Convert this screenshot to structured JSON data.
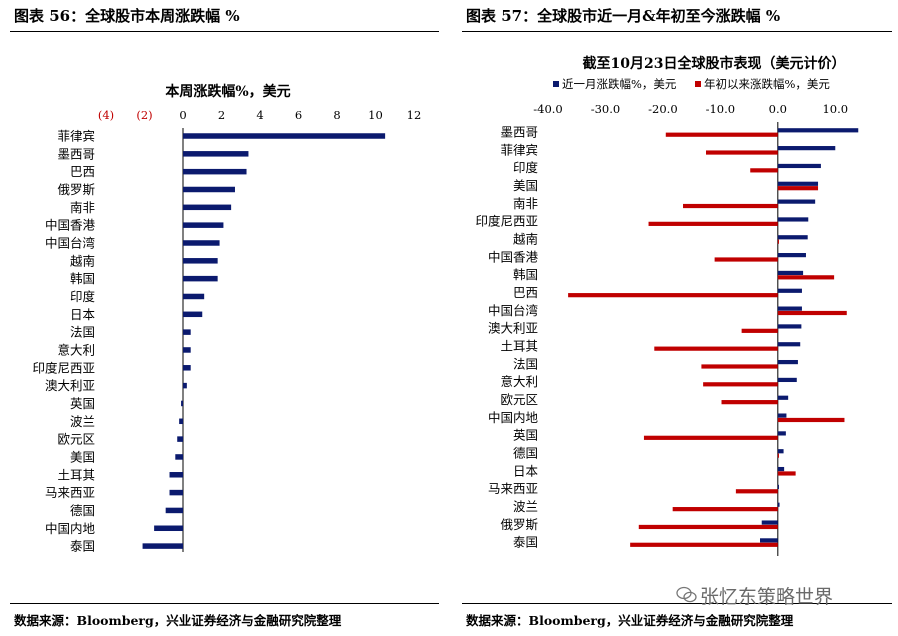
{
  "left": {
    "figure_title": "图表 56：全球股市本周涨跌幅 %",
    "source": "数据来源：Bloomberg，兴业证券经济与金融研究院整理"
  },
  "right": {
    "figure_title": "图表 57：全球股市近一月&年初至今涨跌幅 %",
    "source": "数据来源：Bloomberg，兴业证券经济与金融研究院整理"
  },
  "watermark": "张忆东策略世界",
  "colors": {
    "navy": "#0b1a6e",
    "red": "#c00000",
    "negative_tick": "#c00000"
  },
  "chart_data": [
    {
      "type": "bar",
      "orientation": "horizontal",
      "title": "本周涨跌幅%，美元",
      "xlim": [
        -4,
        12
      ],
      "x_ticks": [
        -4,
        -2,
        0,
        2,
        4,
        6,
        8,
        10,
        12
      ],
      "x_tick_labels": [
        "(4)",
        "(2)",
        "0",
        "2",
        "4",
        "6",
        "8",
        "10",
        "12"
      ],
      "categories": [
        "菲律宾",
        "墨西哥",
        "巴西",
        "俄罗斯",
        "南非",
        "中国香港",
        "中国台湾",
        "越南",
        "韩国",
        "印度",
        "日本",
        "法国",
        "意大利",
        "印度尼西亚",
        "澳大利亚",
        "英国",
        "波兰",
        "欧元区",
        "美国",
        "土耳其",
        "马来西亚",
        "德国",
        "中国内地",
        "泰国"
      ],
      "values": [
        10.5,
        3.4,
        3.3,
        2.7,
        2.5,
        2.1,
        1.9,
        1.8,
        1.8,
        1.1,
        1.0,
        0.4,
        0.4,
        0.4,
        0.2,
        -0.1,
        -0.2,
        -0.3,
        -0.4,
        -0.7,
        -0.7,
        -0.9,
        -1.5,
        -2.1
      ],
      "color": "#0b1a6e"
    },
    {
      "type": "bar",
      "orientation": "horizontal",
      "title": "截至10月23日全球股市表现（美元计价）",
      "xlim": [
        -40,
        15
      ],
      "x_ticks": [
        -40,
        -30,
        -20,
        -10,
        0,
        10
      ],
      "x_tick_labels": [
        "-40.0",
        "-30.0",
        "-20.0",
        "-10.0",
        "0.0",
        "10.0"
      ],
      "legend_position": "top",
      "categories": [
        "墨西哥",
        "菲律宾",
        "印度",
        "美国",
        "南非",
        "印度尼西亚",
        "越南",
        "中国香港",
        "韩国",
        "巴西",
        "中国台湾",
        "澳大利亚",
        "土耳其",
        "法国",
        "意大利",
        "欧元区",
        "中国内地",
        "英国",
        "德国",
        "日本",
        "马来西亚",
        "波兰",
        "俄罗斯",
        "泰国"
      ],
      "series": [
        {
          "name": "近一月涨跌幅%，美元",
          "color": "#0b1a6e",
          "values": [
            14.0,
            10.0,
            7.5,
            7.0,
            6.5,
            5.3,
            5.2,
            4.9,
            4.4,
            4.2,
            4.2,
            4.1,
            3.9,
            3.5,
            3.3,
            1.8,
            1.5,
            1.4,
            1.0,
            1.1,
            0.2,
            0.3,
            -2.8,
            -3.1
          ]
        },
        {
          "name": "年初以来涨跌幅%，美元",
          "color": "#c00000",
          "values": [
            -19.5,
            -12.5,
            -4.8,
            7.0,
            -16.5,
            -22.5,
            0.2,
            -11.0,
            9.8,
            -36.5,
            12.0,
            -6.3,
            -21.5,
            -13.3,
            -13.0,
            -9.8,
            11.6,
            -23.3,
            0.2,
            3.1,
            -7.3,
            -18.3,
            -24.2,
            -25.7
          ]
        }
      ]
    }
  ]
}
